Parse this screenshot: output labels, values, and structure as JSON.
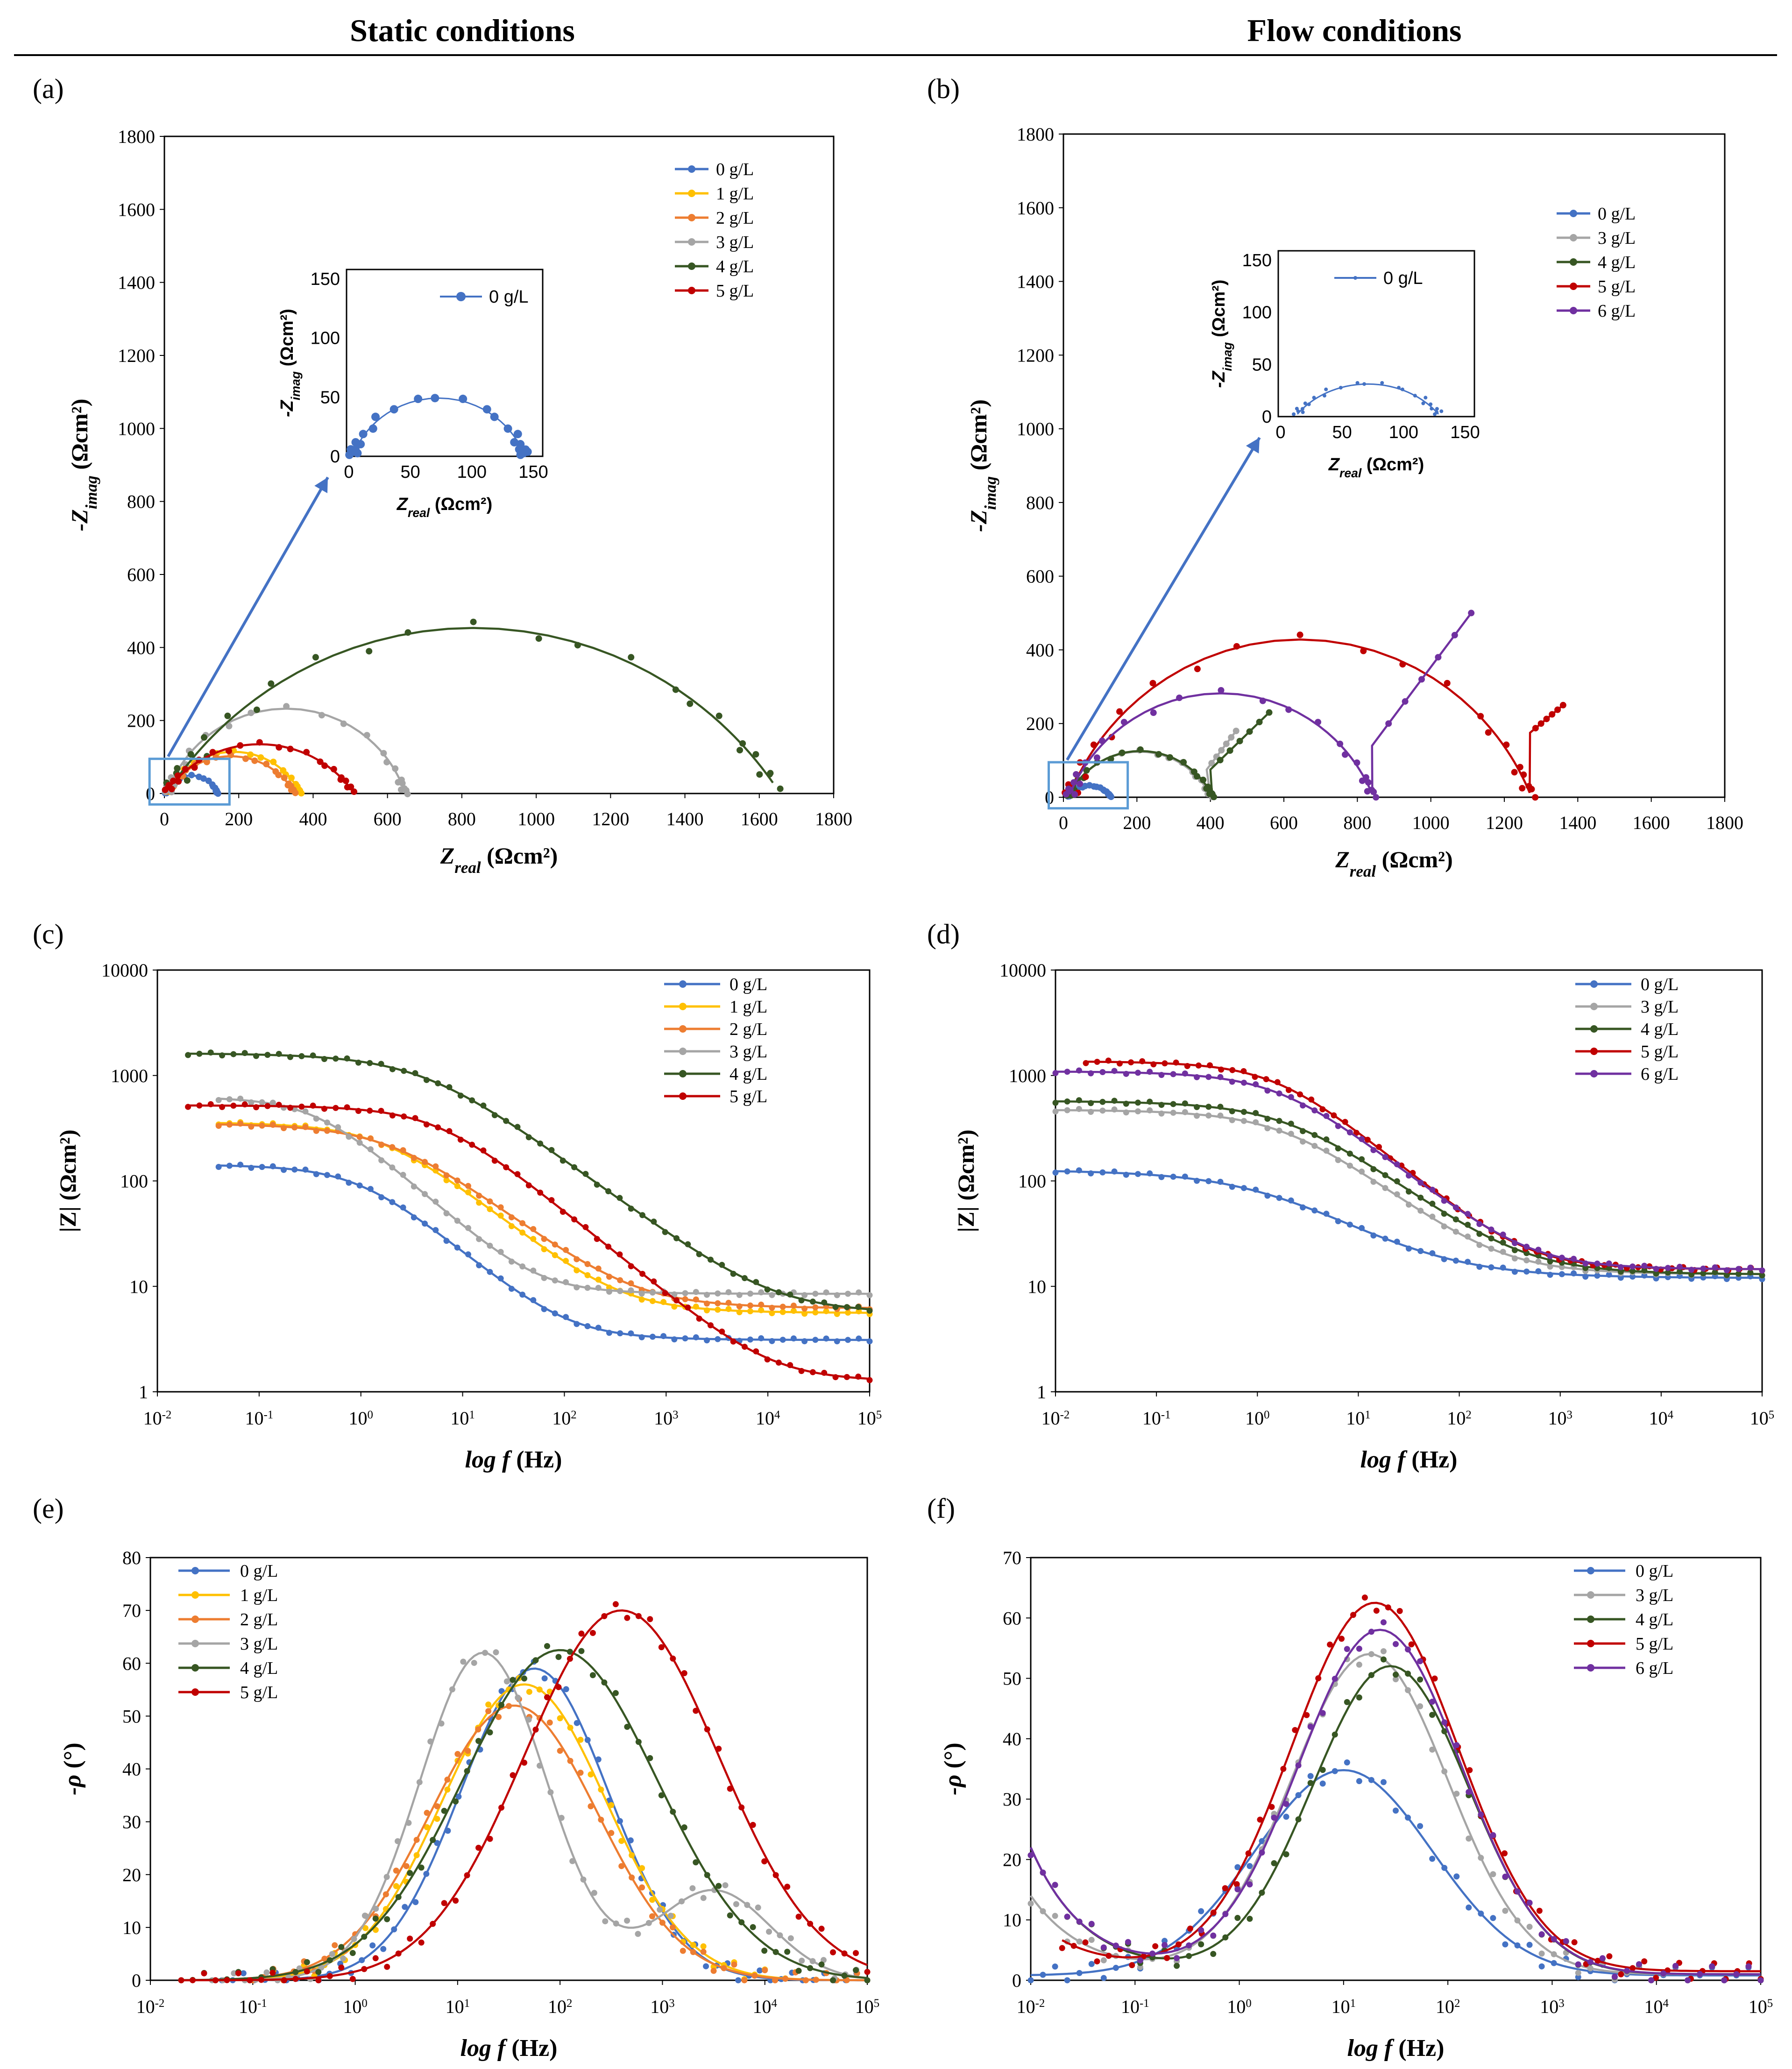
{
  "columns": {
    "left": "Static conditions",
    "right": "Flow conditions"
  },
  "colors": {
    "0 g/L": "#4472C4",
    "1 g/L": "#FFC000",
    "2 g/L": "#ED7D31",
    "3 g/L": "#A5A5A5",
    "4 g/L": "#375623",
    "5 g/L": "#C00000",
    "6 g/L": "#7030A0"
  },
  "chart_data": [
    {
      "id": "a",
      "panel_label": "(a)",
      "type": "scatter",
      "subtype": "nyquist",
      "xlabel_main": "Z",
      "xlabel_sub": "real",
      "xlabel_unit": " (Ωcm²)",
      "ylabel_main": "-Z",
      "ylabel_sub": "imag",
      "ylabel_unit": " (Ωcm²)",
      "xlim": [
        0,
        1800
      ],
      "ylim": [
        0,
        1800
      ],
      "xticks": [
        0,
        200,
        400,
        600,
        800,
        1000,
        1200,
        1400,
        1600,
        1800
      ],
      "yticks": [
        0,
        200,
        400,
        600,
        800,
        1000,
        1200,
        1400,
        1600,
        1800
      ],
      "legend": "top-right",
      "series": [
        {
          "name": "0 g/L",
          "Rs": 3,
          "Rct": 140,
          "beta": 0.78
        },
        {
          "name": "1 g/L",
          "Rs": 6,
          "Rct": 360,
          "beta": 0.72
        },
        {
          "name": "2 g/L",
          "Rs": 6,
          "Rct": 345,
          "beta": 0.68
        },
        {
          "name": "3 g/L",
          "Rs": 8,
          "Rct": 640,
          "beta": 0.8
        },
        {
          "name": "4 g/L",
          "Rs": 6,
          "Rct": 1650,
          "beta": 0.64
        },
        {
          "name": "5 g/L",
          "Rs": 1,
          "Rct": 510,
          "beta": 0.62
        }
      ],
      "inset": {
        "xlim": [
          0,
          150
        ],
        "ylim": [
          0,
          150
        ],
        "xticks": [
          0,
          50,
          100,
          150
        ],
        "yticks": [
          0,
          50,
          100,
          150
        ],
        "series": [
          {
            "name": "0 g/L",
            "Rs": 3,
            "Rct": 140,
            "beta": 0.78
          }
        ],
        "xlabel_main": "Z",
        "xlabel_sub": "real",
        "xlabel_unit": " (Ωcm²)",
        "ylabel_main": "-Z",
        "ylabel_sub": "imag",
        "ylabel_unit": " (Ωcm²)"
      }
    },
    {
      "id": "b",
      "panel_label": "(b)",
      "type": "scatter",
      "subtype": "nyquist",
      "xlabel_main": "Z",
      "xlabel_sub": "real",
      "xlabel_unit": " (Ωcm²)",
      "ylabel_main": "-Z",
      "ylabel_sub": "imag",
      "ylabel_unit": " (Ωcm²)",
      "xlim": [
        0,
        1800
      ],
      "ylim": [
        0,
        1800
      ],
      "xticks": [
        0,
        200,
        400,
        600,
        800,
        1000,
        1200,
        1400,
        1600,
        1800
      ],
      "yticks": [
        0,
        200,
        400,
        600,
        800,
        1000,
        1200,
        1400,
        1600,
        1800
      ],
      "legend": "top-right",
      "series": [
        {
          "name": "0 g/L",
          "Rs": 12,
          "Rct": 118,
          "beta": 0.62
        },
        {
          "name": "3 g/L",
          "Rs": 12,
          "Rct": 390,
          "beta": 0.72,
          "tail": [
            [
              390,
              75
            ],
            [
              470,
              180
            ]
          ]
        },
        {
          "name": "4 g/L",
          "Rs": 12,
          "Rct": 395,
          "beta": 0.72,
          "tail": [
            [
              400,
              75
            ],
            [
              560,
              230
            ]
          ]
        },
        {
          "name": "5 g/L",
          "Rs": 14,
          "Rct": 1260,
          "beta": 0.76,
          "tail": [
            [
              1270,
              175
            ],
            [
              1360,
              250
            ]
          ]
        },
        {
          "name": "6 g/L",
          "Rs": 14,
          "Rct": 830,
          "beta": 0.76,
          "tail": [
            [
              840,
              140
            ],
            [
              1110,
              500
            ]
          ]
        }
      ],
      "inset": {
        "xlim": [
          0,
          150
        ],
        "ylim": [
          0,
          150
        ],
        "xticks": [
          0,
          50,
          100,
          150
        ],
        "yticks": [
          0,
          50,
          100,
          150
        ],
        "series": [
          {
            "name": "0 g/L",
            "Rs": 12,
            "Rct": 118,
            "beta": 0.62
          }
        ],
        "xlabel_main": "Z",
        "xlabel_sub": "real",
        "xlabel_unit": " (Ωcm²)",
        "ylabel_main": "-Z",
        "ylabel_sub": "imag",
        "ylabel_unit": " (Ωcm²)"
      }
    },
    {
      "id": "c",
      "panel_label": "(c)",
      "type": "line",
      "subtype": "bode-modulus",
      "xlabel_main": "log f",
      "xlabel_unit": " (Hz)",
      "ylabel": "|Z| (Ωcm²)",
      "xlim_log10": [
        -2,
        5
      ],
      "ylim_log10": [
        0,
        4
      ],
      "xtick_exponents": [
        -2,
        -1,
        0,
        1,
        2,
        3,
        4,
        5
      ],
      "yticks": [
        "1",
        "10",
        "100",
        "1000",
        "10000"
      ],
      "legend": "top-right",
      "series": [
        {
          "name": "0 g/L",
          "Rs": 3.1,
          "Rct": 140,
          "Q": 0.0016,
          "n": 0.82,
          "fmin": 0.04
        },
        {
          "name": "1 g/L",
          "Rs": 5.6,
          "Rct": 355,
          "Q": 0.00045,
          "n": 0.78,
          "fmin": 0.04
        },
        {
          "name": "2 g/L",
          "Rs": 6.2,
          "Rct": 345,
          "Q": 0.00045,
          "n": 0.74,
          "fmin": 0.04
        },
        {
          "name": "3 g/L",
          "Rs": 8.5,
          "Rct": 620,
          "Q": 0.0008,
          "n": 0.86,
          "fmin": 0.04
        },
        {
          "name": "4 g/L",
          "Rs": 5.5,
          "Rct": 1620,
          "Q": 6e-05,
          "n": 0.72,
          "fmin": 0.02
        },
        {
          "name": "5 g/L",
          "Rs": 1.25,
          "Rct": 520,
          "Q": 0.00011,
          "n": 0.8,
          "fmin": 0.02
        }
      ]
    },
    {
      "id": "d",
      "panel_label": "(d)",
      "type": "line",
      "subtype": "bode-modulus",
      "xlabel_main": "log f",
      "xlabel_unit": " (Hz)",
      "ylabel": "|Z| (Ωcm²)",
      "xlim_log10": [
        -2,
        5
      ],
      "ylim_log10": [
        0,
        4
      ],
      "xtick_exponents": [
        -2,
        -1,
        0,
        1,
        2,
        3,
        4,
        5
      ],
      "yticks": [
        "1",
        "10",
        "100",
        "1000",
        "10000"
      ],
      "legend": "top-right",
      "series": [
        {
          "name": "0 g/L",
          "Rs": 12,
          "Rct": 115,
          "Q": 0.0025,
          "n": 0.62,
          "fmin": 0.01
        },
        {
          "name": "3 g/L",
          "Rs": 13,
          "Rct": 460,
          "Q": 0.00035,
          "n": 0.74,
          "fmin": 0.01
        },
        {
          "name": "4 g/L",
          "Rs": 13,
          "Rct": 560,
          "Q": 0.00028,
          "n": 0.72,
          "fmin": 0.01
        },
        {
          "name": "5 g/L",
          "Rs": 14.5,
          "Rct": 1350,
          "Q": 0.00012,
          "n": 0.8,
          "fmin": 0.02
        },
        {
          "name": "6 g/L",
          "Rs": 14.5,
          "Rct": 1080,
          "Q": 0.00015,
          "n": 0.77,
          "fmin": 0.01
        }
      ]
    },
    {
      "id": "e",
      "panel_label": "(e)",
      "type": "line",
      "subtype": "bode-phase",
      "xlabel_main": "log f",
      "xlabel_unit": " (Hz)",
      "ylabel": "-ρ (°)",
      "xlim_log10": [
        -2,
        5
      ],
      "ylim": [
        0,
        80
      ],
      "xtick_exponents": [
        -2,
        -1,
        0,
        1,
        2,
        3,
        4,
        5
      ],
      "yticks": [
        0,
        10,
        20,
        30,
        40,
        50,
        60,
        70,
        80
      ],
      "legend": "top-left",
      "series": [
        {
          "name": "0 g/L",
          "peaks": [
            {
              "h": 59,
              "c": 1.75,
              "w": 0.72
            }
          ],
          "base": 0,
          "fmin": 0.05
        },
        {
          "name": "1 g/L",
          "peaks": [
            {
              "h": 56,
              "c": 1.65,
              "w": 0.8
            }
          ],
          "base": 0,
          "fmin": 0.1
        },
        {
          "name": "2 g/L",
          "peaks": [
            {
              "h": 52,
              "c": 1.55,
              "w": 0.82
            }
          ],
          "base": 0,
          "fmin": 0.1
        },
        {
          "name": "3 g/L",
          "peaks": [
            {
              "h": 62,
              "c": 1.25,
              "w": 0.62
            },
            {
              "h": 17,
              "c": 3.5,
              "w": 0.55
            }
          ],
          "base": 0,
          "fmin": 0.04
        },
        {
          "name": "4 g/L",
          "peaks": [
            {
              "h": 62.5,
              "c": 2.0,
              "w": 0.95
            }
          ],
          "base": 0,
          "fmin": 0.02
        },
        {
          "name": "5 g/L",
          "peaks": [
            {
              "h": 70,
              "c": 2.6,
              "w": 0.95
            }
          ],
          "base": 0,
          "fmin": 0.02
        }
      ]
    },
    {
      "id": "f",
      "panel_label": "(f)",
      "type": "line",
      "subtype": "bode-phase",
      "xlabel_main": "log f",
      "xlabel_unit": " (Hz)",
      "ylabel": "-ρ (°)",
      "xlim_log10": [
        -2,
        5
      ],
      "ylim": [
        0,
        70
      ],
      "xtick_exponents": [
        -2,
        -1,
        0,
        1,
        2,
        3,
        4,
        5
      ],
      "yticks": [
        0,
        10,
        20,
        30,
        40,
        50,
        60,
        70
      ],
      "legend": "top-right",
      "series": [
        {
          "name": "0 g/L",
          "peaks": [
            {
              "h": 34,
              "c": 1.0,
              "w": 0.85
            }
          ],
          "base": 0.8,
          "low": 0,
          "fmin": 0.01
        },
        {
          "name": "3 g/L",
          "peaks": [
            {
              "h": 53,
              "c": 1.25,
              "w": 0.75
            }
          ],
          "base": 1,
          "low": 13,
          "fmin": 0.01
        },
        {
          "name": "4 g/L",
          "peaks": [
            {
              "h": 51,
              "c": 1.45,
              "w": 0.75
            }
          ],
          "base": 1,
          "low": 21,
          "fmin": 0.01
        },
        {
          "name": "5 g/L",
          "peaks": [
            {
              "h": 61,
              "c": 1.3,
              "w": 0.8
            }
          ],
          "base": 1.5,
          "low": 9,
          "fmin": 0.02
        },
        {
          "name": "6 g/L",
          "peaks": [
            {
              "h": 57,
              "c": 1.35,
              "w": 0.78
            }
          ],
          "base": 1,
          "low": 21,
          "fmin": 0.01
        }
      ]
    }
  ]
}
